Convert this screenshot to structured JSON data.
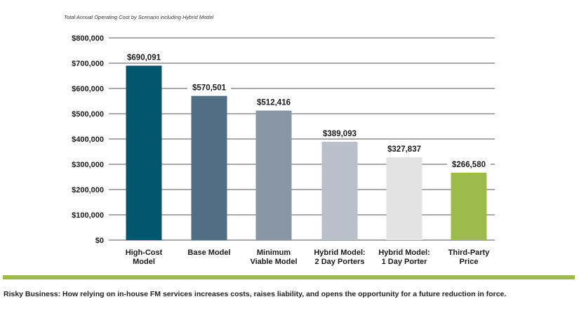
{
  "caption": "Risky Business: How relying on in-house FM services increases costs, raises liability, and opens the opportunity for a future reduction in force.",
  "colors": {
    "divider": "#9dbb4a",
    "gridline": "#555555",
    "text": "#1a1a1a"
  },
  "chart_data": {
    "type": "bar",
    "title": "Total Annual Operating Cost by Scenario including Hybrid Model",
    "xlabel": "",
    "ylabel": "",
    "ylim": [
      0,
      800000
    ],
    "yticks": [
      0,
      100000,
      200000,
      300000,
      400000,
      500000,
      600000,
      700000,
      800000
    ],
    "ytick_labels": [
      "$0",
      "$100,000",
      "$200,000",
      "$300,000",
      "$400,000",
      "$500,000",
      "$600,000",
      "$700,000",
      "$800,000"
    ],
    "grid": true,
    "legend": "none",
    "categories": [
      [
        "High-Cost",
        "Model"
      ],
      [
        "Base Model"
      ],
      [
        "Minimum",
        "Viable Model"
      ],
      [
        "Hybrid Model:",
        "2 Day Porters"
      ],
      [
        "Hybrid Model:",
        "1 Day Porter"
      ],
      [
        "Third-Party",
        "Price"
      ]
    ],
    "values": [
      690091,
      570501,
      512416,
      389093,
      327837,
      266580
    ],
    "data_labels": [
      "$690,091",
      "$570,501",
      "$512,416",
      "$389,093",
      "$327,837",
      "$266,580"
    ],
    "bar_colors": [
      "#02566e",
      "#526e84",
      "#8996a6",
      "#b9c0ca",
      "#e3e3e3",
      "#9dbb4a"
    ]
  }
}
